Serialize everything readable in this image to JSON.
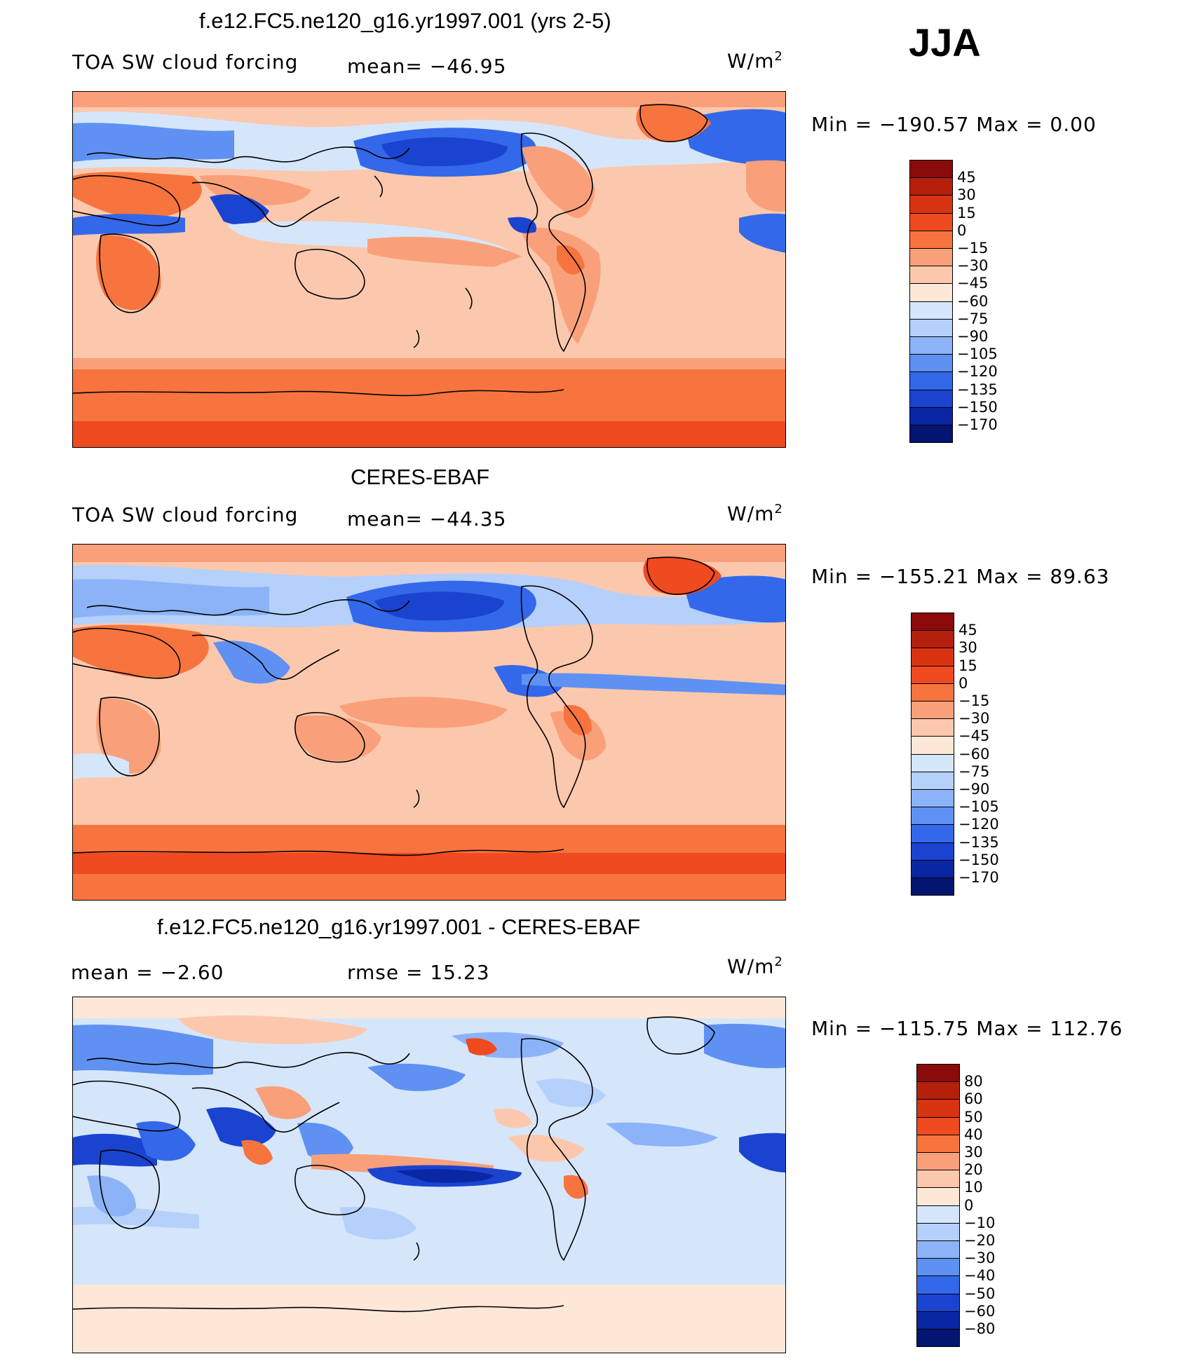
{
  "season": "JJA",
  "panels": [
    {
      "id": "model",
      "title": "f.e12.FC5.ne120_g16.yr1997.001 (yrs 2-5)",
      "left_label": "TOA SW cloud forcing",
      "stat_label": "mean= −46.95",
      "units_base": "W/m",
      "units_exp": "2",
      "minmax": "Min  =  −190.57  Max  =     0.00",
      "colorbar": {
        "ticks": [
          "45",
          "30",
          "15",
          "0",
          "−15",
          "−30",
          "−45",
          "−60",
          "−75",
          "−90",
          "−105",
          "−120",
          "−135",
          "−150",
          "−170"
        ],
        "colors": [
          "#8b0a0a",
          "#b5200d",
          "#d83412",
          "#ef4a20",
          "#f7743e",
          "#f9a07a",
          "#fcc8ad",
          "#fde8d8",
          "#d5e6fb",
          "#b5d0fb",
          "#8cb3f8",
          "#5f91f2",
          "#3468ea",
          "#1a44d0",
          "#0a27a3",
          "#031571"
        ]
      }
    },
    {
      "id": "obs",
      "title": "CERES-EBAF",
      "left_label": "TOA SW cloud forcing",
      "stat_label": "mean= −44.35",
      "units_base": "W/m",
      "units_exp": "2",
      "minmax": "Min  =  −155.21  Max  =    89.63",
      "colorbar": {
        "ticks": [
          "45",
          "30",
          "15",
          "0",
          "−15",
          "−30",
          "−45",
          "−60",
          "−75",
          "−90",
          "−105",
          "−120",
          "−135",
          "−150",
          "−170"
        ],
        "colors": [
          "#8b0a0a",
          "#b5200d",
          "#d83412",
          "#ef4a20",
          "#f7743e",
          "#f9a07a",
          "#fcc8ad",
          "#fde8d8",
          "#d5e6fb",
          "#b5d0fb",
          "#8cb3f8",
          "#5f91f2",
          "#3468ea",
          "#1a44d0",
          "#0a27a3",
          "#031571"
        ]
      }
    },
    {
      "id": "diff",
      "title": "f.e12.FC5.ne120_g16.yr1997.001 - CERES-EBAF",
      "left_label": "mean  =    −2.60",
      "stat_label": "rmse  =    15.23",
      "units_base": "W/m",
      "units_exp": "2",
      "minmax": "Min  =  −115.75  Max  =  112.76",
      "colorbar": {
        "ticks": [
          "80",
          "60",
          "50",
          "40",
          "30",
          "20",
          "10",
          "0",
          "−10",
          "−20",
          "−30",
          "−40",
          "−50",
          "−60",
          "−80"
        ],
        "colors": [
          "#8b0a0a",
          "#b5200d",
          "#d83412",
          "#ef4a20",
          "#f7743e",
          "#f9a07a",
          "#fcc8ad",
          "#fde8d8",
          "#d5e6fb",
          "#b5d0fb",
          "#8cb3f8",
          "#5f91f2",
          "#3468ea",
          "#1a44d0",
          "#0a27a3",
          "#031571"
        ]
      }
    }
  ]
}
